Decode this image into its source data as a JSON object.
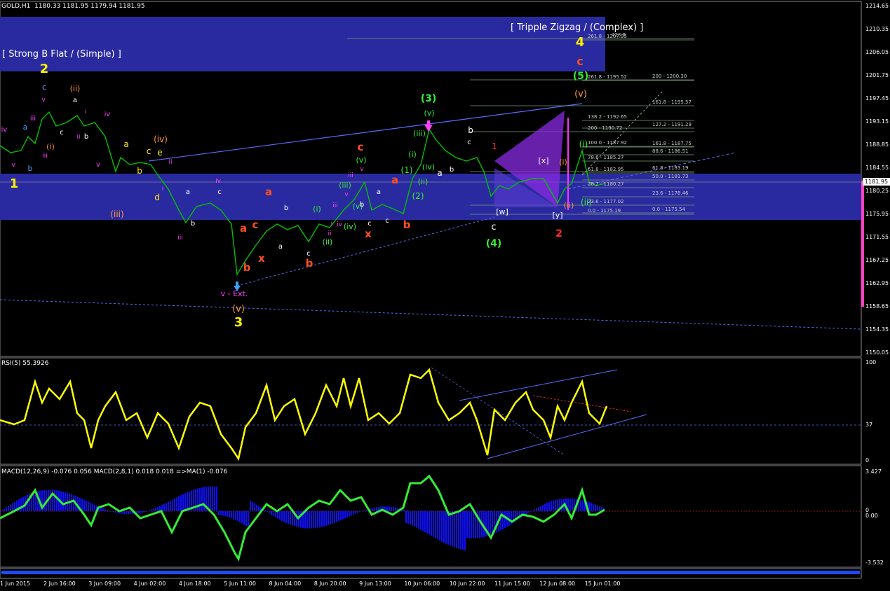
{
  "window": {
    "symbol_label": "GOLD,H1",
    "ohlc_label": "1180.33 1181.95 1179.94 1181.95",
    "current_price": "1181.95"
  },
  "colors": {
    "background": "#000000",
    "grid": "#ffffff",
    "price_line": "#00c000",
    "band": "#2a2aa0",
    "wedge": "#8a2be2",
    "rsi_line": "#ffff00",
    "macd_hist": "#1010ff",
    "macd_line": "#33ee33",
    "fib_line": "#7b9b7b"
  },
  "banners": {
    "left": "[ Strong B Flat / (Simple) ]",
    "right": "[ Tripple Zigzag / (Complex) ]"
  },
  "price_axis": [
    "1214.65",
    "1210.35",
    "1206.05",
    "1201.75",
    "1197.45",
    "1193.15",
    "1188.85",
    "1184.55",
    "1180.25",
    "1175.95",
    "1171.55",
    "1167.25",
    "1162.95",
    "1158.65",
    "1154.35",
    "1150.05"
  ],
  "rsi": {
    "label": "RSI(5) 55.3926",
    "axis": [
      "100",
      "37",
      "0"
    ]
  },
  "macd": {
    "label": "MACD(12,26,9) -0.076 0.056  MACD(2,8,1) 0.018 0.018  =>MA(1) -0.076",
    "axis": [
      "3.427",
      "0",
      "0.00",
      "-3.532"
    ]
  },
  "time_axis": [
    "1 Jun 2015",
    "2 Jun 16:00",
    "3 Jun 09:00",
    "4 Jun 02:00",
    "4 Jun 18:00",
    "5 Jun 11:00",
    "8 Jun 04:00",
    "8 Jun 20:00",
    "9 Jun 13:00",
    "10 Jun 06:00",
    "10 Jun 22:00",
    "11 Jun 15:00",
    "12 Jun 08:00",
    "15 Jun 01:00"
  ],
  "fib_levels": [
    "423.6",
    "261.8 - 1207.95",
    "200 - 1200.30",
    "261.8 - 1195.52",
    "161.8 - 1195.57",
    "138.2 - 1192.65",
    "127.2 - 1191.29",
    "200 - 1190.72",
    "161.8 - 1187.75",
    "100.0 - 1187.92",
    "88.6 - 1186.51",
    "78.6 - 1185.27",
    "61.8 - 1183.19",
    "61.8 - 1182.95",
    "50.0 - 1181.73",
    "38.2 - 1180.27",
    "23.6 - 1178.46",
    "23.6 - 1177.02",
    "0.0 - 1175.54",
    "0.0 - 1175.19"
  ],
  "wave_labels": [
    {
      "t": "1",
      "c": "#ffee00"
    },
    {
      "t": "2",
      "c": "#ffee00"
    },
    {
      "t": "3",
      "c": "#ffee00"
    },
    {
      "t": "4",
      "c": "#ffee00"
    },
    {
      "t": "c",
      "c": "#4da6ff"
    },
    {
      "t": "v",
      "c": "#ff40ff"
    },
    {
      "t": "iii",
      "c": "#ff40ff"
    },
    {
      "t": "iv",
      "c": "#ff40ff"
    },
    {
      "t": "a",
      "c": "#4da6ff"
    },
    {
      "t": "b",
      "c": "#4da6ff"
    },
    {
      "t": "(i)",
      "c": "#ff9933"
    },
    {
      "t": "(ii)",
      "c": "#ff9933"
    },
    {
      "t": "iv",
      "c": "#ff40ff"
    },
    {
      "t": "v",
      "c": "#ff40ff"
    },
    {
      "t": "a",
      "c": "#ffffff"
    },
    {
      "t": "c",
      "c": "#ffffff"
    },
    {
      "t": "b",
      "c": "#ffffff"
    },
    {
      "t": "i",
      "c": "#ff40ff"
    },
    {
      "t": "ii",
      "c": "#ff40ff"
    },
    {
      "t": "iii",
      "c": "#ff40ff"
    },
    {
      "t": "v",
      "c": "#ff40ff"
    },
    {
      "t": "(iii)",
      "c": "#ff9933"
    },
    {
      "t": "a",
      "c": "#ffee00"
    },
    {
      "t": "b",
      "c": "#ffee00"
    },
    {
      "t": "c",
      "c": "#ffee00"
    },
    {
      "t": "e",
      "c": "#ffee00"
    },
    {
      "t": "d",
      "c": "#ffee00"
    },
    {
      "t": "(iv)",
      "c": "#ff9933"
    },
    {
      "t": "ii",
      "c": "#ff40ff"
    },
    {
      "t": "i",
      "c": "#ff40ff"
    },
    {
      "t": "a",
      "c": "#ffffff"
    },
    {
      "t": "b",
      "c": "#ffffff"
    },
    {
      "t": "iii",
      "c": "#ff40ff"
    },
    {
      "t": "iv",
      "c": "#ff40ff"
    },
    {
      "t": "c",
      "c": "#ffffff"
    },
    {
      "t": "a",
      "c": "#ff5020"
    },
    {
      "t": "c",
      "c": "#ff5020"
    },
    {
      "t": "b",
      "c": "#ff5020"
    },
    {
      "t": "x",
      "c": "#ff5020"
    },
    {
      "t": "a",
      "c": "#ff5020"
    },
    {
      "t": "b",
      "c": "#ff5020"
    },
    {
      "t": "b",
      "c": "#ffffff"
    },
    {
      "t": "a",
      "c": "#ffffff"
    },
    {
      "t": "c",
      "c": "#ffffff"
    },
    {
      "t": "(i)",
      "c": "#33ee33"
    },
    {
      "t": "(ii)",
      "c": "#33ee33"
    },
    {
      "t": "ii",
      "c": "#ff40ff"
    },
    {
      "t": "i",
      "c": "#ff40ff"
    },
    {
      "t": "iii",
      "c": "#ff40ff"
    },
    {
      "t": "iv",
      "c": "#ff40ff"
    },
    {
      "t": "(iv)",
      "c": "#33ee33"
    },
    {
      "t": "v",
      "c": "#ff40ff"
    },
    {
      "t": "(iii)",
      "c": "#33ee33"
    },
    {
      "t": "(v)",
      "c": "#33ee33"
    },
    {
      "t": "iii",
      "c": "#ff40ff"
    },
    {
      "t": "x",
      "c": "#ff5020"
    },
    {
      "t": "c",
      "c": "#ff5020"
    },
    {
      "t": "(v)",
      "c": "#33ee33"
    },
    {
      "t": "v",
      "c": "#ff40ff"
    },
    {
      "t": "c",
      "c": "#ffffff"
    },
    {
      "t": "b",
      "c": "#ffffff"
    },
    {
      "t": "a",
      "c": "#ffffff"
    },
    {
      "t": "c",
      "c": "#ffffff"
    },
    {
      "t": "a",
      "c": "#ff5020"
    },
    {
      "t": "b",
      "c": "#ff5020"
    },
    {
      "t": "(1)",
      "c": "#33ee33"
    },
    {
      "t": "(2)",
      "c": "#33ee33"
    },
    {
      "t": "(i)",
      "c": "#33ee33"
    },
    {
      "t": "(ii)",
      "c": "#33ee33"
    },
    {
      "t": "(iii)",
      "c": "#33ee33"
    },
    {
      "t": "(iv)",
      "c": "#33ee33"
    },
    {
      "t": "(v)",
      "c": "#33ee33"
    },
    {
      "t": "(3)",
      "c": "#33ee33"
    },
    {
      "t": "a",
      "c": "#ffffff"
    },
    {
      "t": "b",
      "c": "#ffffff"
    },
    {
      "t": "c",
      "c": "#ffffff"
    },
    {
      "t": "b",
      "c": "#ffffff"
    },
    {
      "t": "1",
      "c": "#ff3030"
    },
    {
      "t": "[w]",
      "c": "#ffffff"
    },
    {
      "t": "c",
      "c": "#ffffff"
    },
    {
      "t": "(4)",
      "c": "#33ee33"
    },
    {
      "t": "[x]",
      "c": "#ffffff"
    },
    {
      "t": "(i)",
      "c": "#ff9933"
    },
    {
      "t": "(ii)",
      "c": "#ff9933"
    },
    {
      "t": "[y]",
      "c": "#ffffff"
    },
    {
      "t": "2",
      "c": "#ff3030"
    },
    {
      "t": "(i)",
      "c": "#33ee33"
    },
    {
      "t": "(ii)",
      "c": "#33ee33"
    },
    {
      "t": "(v)",
      "c": "#ff9933"
    },
    {
      "t": "(5)",
      "c": "#33ee33"
    },
    {
      "t": "c",
      "c": "#ff5020"
    },
    {
      "t": "v - Ext.",
      "c": "#ff40ff"
    },
    {
      "t": "(v)",
      "c": "#ff9933"
    }
  ],
  "chart_data": {
    "type": "line",
    "title": "GOLD,H1",
    "ylim": [
      1150.05,
      1214.65
    ],
    "x": [
      "1 Jun 2015",
      "2 Jun 16:00",
      "3 Jun 09:00",
      "4 Jun 02:00",
      "4 Jun 18:00",
      "5 Jun 11:00",
      "8 Jun 04:00",
      "8 Jun 20:00",
      "9 Jun 13:00",
      "10 Jun 06:00",
      "10 Jun 22:00",
      "11 Jun 15:00",
      "12 Jun 08:00",
      "15 Jun 01:00"
    ],
    "series": [
      {
        "values": [
          1187.5,
          1192.0,
          1191.0,
          1185.5,
          1178.0,
          1164.5,
          1173.5,
          1175.0,
          1180.0,
          1188.5,
          1186.5,
          1180.0,
          1179.0,
          1181.95
        ]
      }
    ]
  }
}
